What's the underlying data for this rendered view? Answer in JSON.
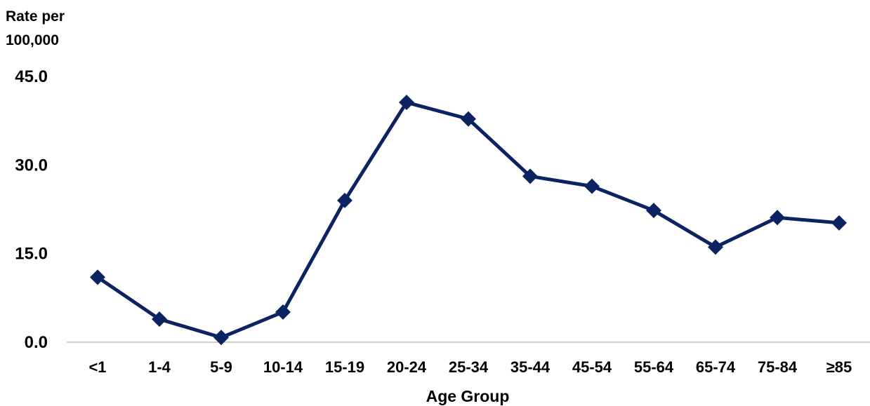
{
  "chart_data": {
    "type": "line",
    "ylabel_lines": [
      "Rate per",
      "100,000"
    ],
    "xlabel": "Age Group",
    "categories": [
      "<1",
      "1-4",
      "5-9",
      "10-14",
      "15-19",
      "20-24",
      "25-34",
      "35-44",
      "45-54",
      "55-64",
      "65-74",
      "75-84",
      "≥85"
    ],
    "series": [
      {
        "values": [
          11.0,
          3.9,
          0.8,
          5.1,
          24.0,
          40.6,
          37.8,
          28.1,
          26.4,
          22.3,
          16.1,
          21.1,
          20.2
        ]
      }
    ],
    "ylim": [
      0,
      45
    ],
    "yticks": [
      "0.0",
      "15.0",
      "30.0",
      "45.0"
    ],
    "ytick_values": [
      0,
      15,
      30,
      45
    ],
    "grid": false,
    "marker": "diamond",
    "line_color": "#0b2461",
    "axis_color": "#bfbfbf"
  }
}
